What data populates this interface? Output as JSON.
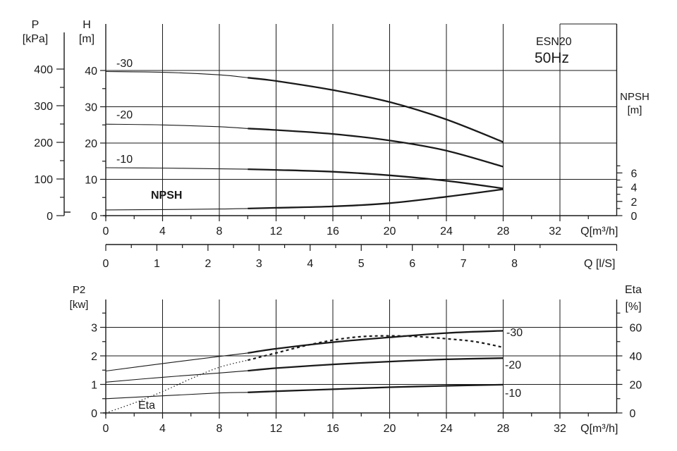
{
  "chart_data": [
    {
      "type": "line",
      "title": "ESN20",
      "subtitle": "50Hz",
      "xlabel": "Q[m³/h]",
      "xlim": [
        0,
        36
      ],
      "x_ticks": [
        "0",
        "4",
        "8",
        "12",
        "16",
        "20",
        "24",
        "28",
        "32"
      ],
      "xlabel2": "Q [l/S]",
      "x2_ticks": [
        "0",
        "1",
        "2",
        "3",
        "4",
        "5",
        "6",
        "7",
        "8"
      ],
      "ylabel_left_outer": [
        "P",
        "[kPa]"
      ],
      "y_outer_ticks": [
        "0",
        "100",
        "200",
        "300",
        "400"
      ],
      "ylabel_left": [
        "H",
        "[m]"
      ],
      "ylim": [
        0,
        45
      ],
      "y_ticks": [
        "0",
        "10",
        "20",
        "30",
        "40"
      ],
      "ylabel_right": [
        "NPSH",
        "[m]"
      ],
      "y2lim": [
        0,
        9
      ],
      "y2_ticks": [
        "0",
        "2",
        "4",
        "6"
      ],
      "grid": true,
      "series": [
        {
          "name": "-30",
          "axis": "H",
          "x": [
            0,
            4,
            8,
            10,
            12,
            16,
            20,
            24,
            28
          ],
          "y": [
            39.7,
            39.5,
            38.8,
            38.0,
            37.1,
            34.6,
            31.3,
            26.5,
            20.3
          ]
        },
        {
          "name": "-20",
          "axis": "H",
          "x": [
            0,
            4,
            8,
            10,
            12,
            16,
            20,
            24,
            28
          ],
          "y": [
            25.2,
            25.0,
            24.5,
            24.0,
            23.6,
            22.5,
            20.7,
            17.9,
            13.5
          ]
        },
        {
          "name": "-10",
          "axis": "H",
          "x": [
            0,
            4,
            8,
            10,
            12,
            16,
            20,
            24,
            28
          ],
          "y": [
            13.2,
            13.1,
            12.9,
            12.8,
            12.6,
            12.1,
            11.1,
            9.6,
            7.5
          ]
        },
        {
          "name": "NPSH",
          "axis": "NPSH",
          "x": [
            0,
            4,
            8,
            10,
            12,
            16,
            20,
            24,
            28
          ],
          "y": [
            0.8,
            0.85,
            0.93,
            1.0,
            1.1,
            1.3,
            1.75,
            2.65,
            3.7
          ]
        }
      ]
    },
    {
      "type": "line",
      "xlabel": "Q[m³/h]",
      "xlim": [
        0,
        36
      ],
      "x_ticks": [
        "0",
        "4",
        "8",
        "12",
        "16",
        "20",
        "24",
        "28",
        "32"
      ],
      "ylabel_left": [
        "P2",
        "[kw]"
      ],
      "ylim": [
        0,
        3.5
      ],
      "y_ticks": [
        "0",
        "1",
        "2",
        "3"
      ],
      "ylabel_right": [
        "Eta",
        "[%]"
      ],
      "y2lim": [
        0,
        70
      ],
      "y2_ticks": [
        "0",
        "20",
        "40",
        "60"
      ],
      "grid": true,
      "series": [
        {
          "name": "-30",
          "axis": "P2",
          "x": [
            0,
            4,
            8,
            10,
            12,
            16,
            20,
            24,
            28
          ],
          "y": [
            1.47,
            1.73,
            1.98,
            2.1,
            2.25,
            2.48,
            2.65,
            2.8,
            2.88
          ]
        },
        {
          "name": "-20",
          "axis": "P2",
          "x": [
            0,
            4,
            8,
            10,
            12,
            16,
            20,
            24,
            28
          ],
          "y": [
            1.08,
            1.25,
            1.4,
            1.48,
            1.57,
            1.7,
            1.8,
            1.88,
            1.92
          ]
        },
        {
          "name": "-10",
          "axis": "P2",
          "x": [
            0,
            4,
            8,
            10,
            12,
            16,
            20,
            24,
            28
          ],
          "y": [
            0.5,
            0.6,
            0.7,
            0.72,
            0.76,
            0.83,
            0.9,
            0.95,
            0.99
          ]
        },
        {
          "name": "Eta",
          "axis": "Eta",
          "x": [
            0,
            2,
            4,
            6,
            8,
            10,
            12,
            14,
            16,
            18,
            20,
            22,
            24,
            26,
            28
          ],
          "y": [
            0,
            7,
            15,
            24,
            32,
            37,
            42,
            47,
            51,
            53.5,
            54,
            53.5,
            52,
            50,
            46
          ]
        }
      ]
    }
  ]
}
